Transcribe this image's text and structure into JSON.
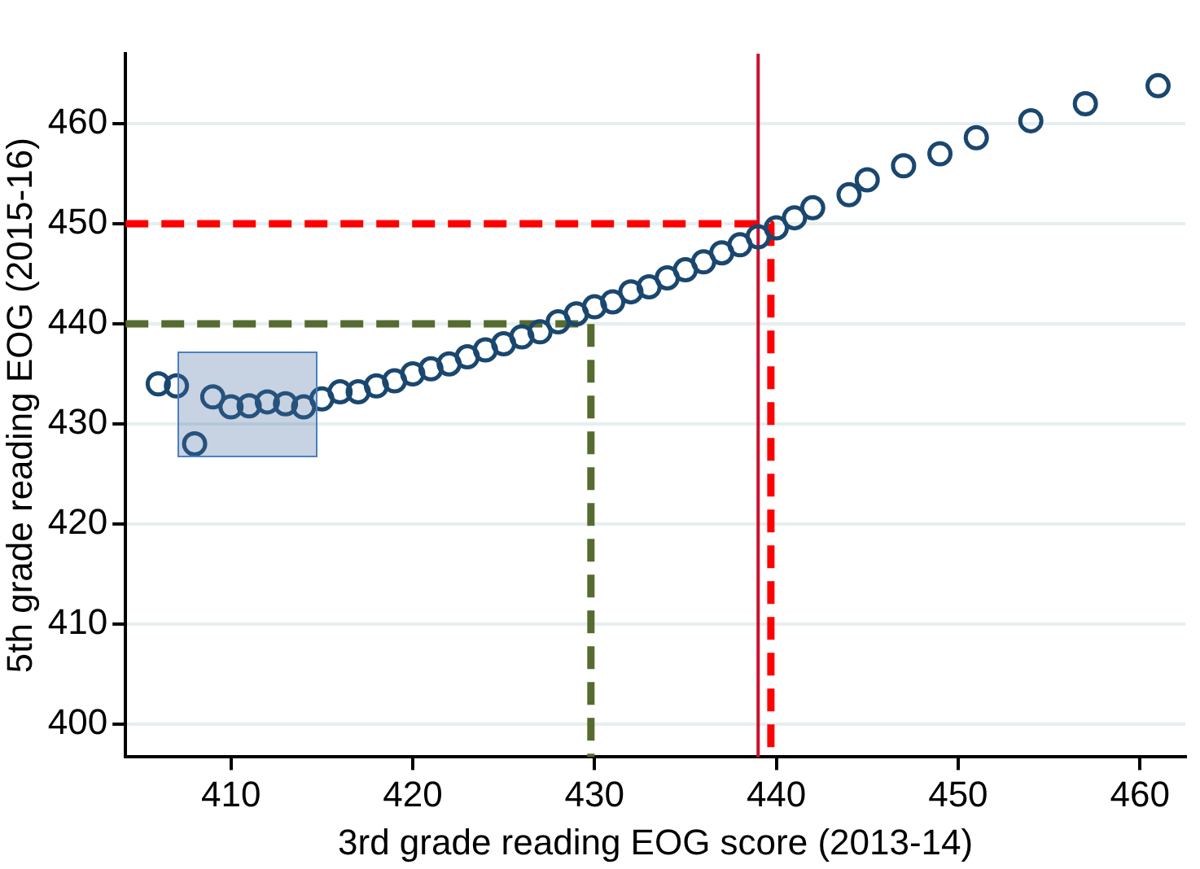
{
  "chart_data": {
    "type": "scatter",
    "xlabel": "3rd grade reading EOG score (2013-14)",
    "ylabel": "5th grade reading EOG (2015-16)",
    "xlim": [
      404.2,
      462.5
    ],
    "xticks": [
      410,
      420,
      430,
      440,
      450,
      460
    ],
    "ylim": [
      396.7,
      467
    ],
    "yticks": [
      400,
      410,
      420,
      430,
      440,
      450,
      460
    ],
    "grid": "y",
    "legend": false,
    "series": [
      {
        "marker": "circle",
        "color": "#1a476f",
        "x": [
          406,
          407,
          408,
          409,
          410,
          411,
          412,
          413,
          414,
          415,
          416,
          417,
          418,
          419,
          420,
          421,
          422,
          423,
          424,
          425,
          426,
          427,
          428,
          429,
          430,
          431,
          432,
          433,
          434,
          435,
          436,
          437,
          438,
          439,
          440,
          441,
          442,
          444,
          445,
          447,
          449,
          451,
          454,
          457,
          461
        ],
        "values": [
          434.0,
          433.8,
          428.0,
          432.7,
          431.7,
          431.8,
          432.2,
          432.0,
          431.7,
          432.5,
          433.2,
          433.2,
          433.8,
          434.3,
          435.0,
          435.5,
          436.0,
          436.7,
          437.4,
          438.0,
          438.7,
          439.2,
          440.2,
          441.0,
          441.7,
          442.2,
          443.2,
          443.7,
          444.6,
          445.4,
          446.2,
          447.1,
          447.9,
          448.7,
          449.6,
          450.6,
          451.6,
          452.9,
          454.4,
          455.8,
          457.0,
          458.6,
          460.3,
          462.0,
          463.8
        ]
      },
      {
        "type": "line",
        "marker": "none",
        "color": "#ff0000",
        "line_style": "dashed",
        "x": [
          404.2,
          439.7,
          439.7
        ],
        "values": [
          450,
          450,
          396.7
        ]
      },
      {
        "type": "line",
        "marker": "none",
        "color": "#556b2f",
        "line_style": "dashed",
        "x": [
          404.2,
          429.8,
          429.8
        ],
        "values": [
          440,
          440,
          396.7
        ]
      }
    ],
    "ref_lines": [
      {
        "axis": "x",
        "value": 439,
        "color": "#c8102e",
        "line_style": "solid"
      }
    ]
  }
}
